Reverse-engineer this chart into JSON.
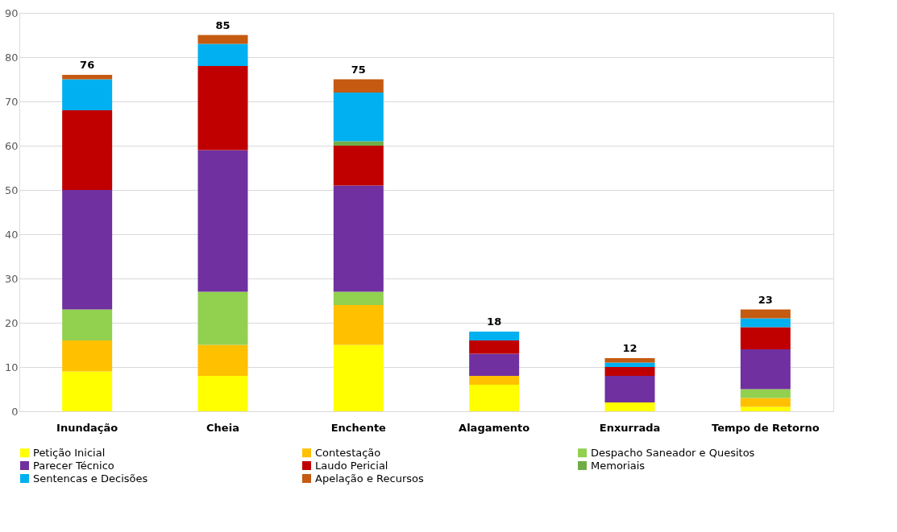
{
  "chart_data": {
    "type": "bar",
    "stacked": true,
    "categories": [
      "Inundação",
      "Cheia",
      "Enchente",
      "Alagamento",
      "Enxurrada",
      "Tempo de Retorno"
    ],
    "series": [
      {
        "name": "Petição Inicial",
        "color": "#ffff00",
        "values": [
          9,
          8,
          15,
          6,
          2,
          1
        ]
      },
      {
        "name": "Contestação",
        "color": "#ffc000",
        "values": [
          7,
          7,
          9,
          2,
          0,
          2
        ]
      },
      {
        "name": "Despacho Saneador e Quesitos",
        "color": "#92d050",
        "values": [
          7,
          12,
          3,
          0,
          0,
          2
        ]
      },
      {
        "name": "Parecer Técnico",
        "color": "#7030a0",
        "values": [
          27,
          32,
          24,
          5,
          6,
          9
        ]
      },
      {
        "name": "Laudo Pericial",
        "color": "#c00000",
        "values": [
          18,
          19,
          9,
          3,
          2,
          5
        ]
      },
      {
        "name": "Memoriais",
        "color": "#70ad47",
        "values": [
          0,
          0,
          1,
          0,
          0,
          0
        ]
      },
      {
        "name": "Sentencas e Decisões",
        "color": "#00b0f0",
        "values": [
          7,
          5,
          11,
          2,
          1,
          2
        ]
      },
      {
        "name": "Apelação e Recursos",
        "color": "#c55a11",
        "values": [
          1,
          2,
          3,
          0,
          1,
          2
        ]
      }
    ],
    "totals": [
      "76",
      "85",
      "75",
      "18",
      "12",
      "23"
    ],
    "ylim": [
      0,
      90
    ],
    "yticks": [
      0,
      10,
      20,
      30,
      40,
      50,
      60,
      70,
      80,
      90
    ],
    "grid": "y",
    "legend": "bottom"
  }
}
